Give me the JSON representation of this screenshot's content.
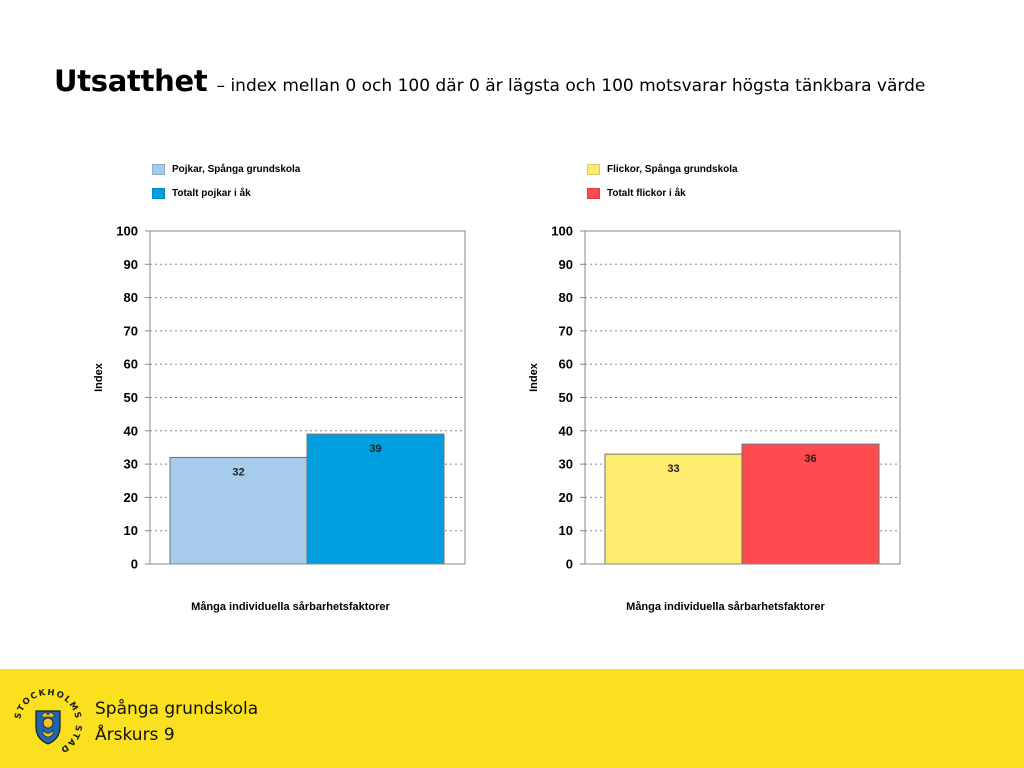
{
  "header": {
    "title": "Utsatthet",
    "subtitle": "– index mellan 0 och 100 där 0 är lägsta och 100 motsvarar högsta tänkbara värde"
  },
  "chart_data": [
    {
      "type": "bar",
      "categories": [
        "Många individuella sårbarhetsfaktorer"
      ],
      "series": [
        {
          "name": "Pojkar,  Spånga grundskola",
          "values": [
            32
          ],
          "color": "#a6cbeb"
        },
        {
          "name": "Totalt pojkar i åk",
          "values": [
            39
          ],
          "color": "#019fe0"
        }
      ],
      "xlabel": "Många individuella sårbarhetsfaktorer",
      "ylabel": "Index",
      "ylim": [
        0,
        100
      ],
      "yticks": [
        0,
        10,
        20,
        30,
        40,
        50,
        60,
        70,
        80,
        90,
        100
      ],
      "grid": true,
      "legend": "top"
    },
    {
      "type": "bar",
      "categories": [
        "Många individuella sårbarhetsfaktorer"
      ],
      "series": [
        {
          "name": "Flickor,  Spånga grundskola",
          "values": [
            33
          ],
          "color": "#ffec6e"
        },
        {
          "name": "Totalt flickor i åk",
          "values": [
            36
          ],
          "color": "#ff4b4f"
        }
      ],
      "xlabel": "Många individuella sårbarhetsfaktorer",
      "ylabel": "Index",
      "ylim": [
        0,
        100
      ],
      "yticks": [
        0,
        10,
        20,
        30,
        40,
        50,
        60,
        70,
        80,
        90,
        100
      ],
      "grid": true,
      "legend": "top"
    }
  ],
  "footer": {
    "line1": "Spånga grundskola",
    "line2": "Årskurs 9",
    "logo_text": "STOCKHOLMS STAD",
    "background": "#fbe020"
  }
}
